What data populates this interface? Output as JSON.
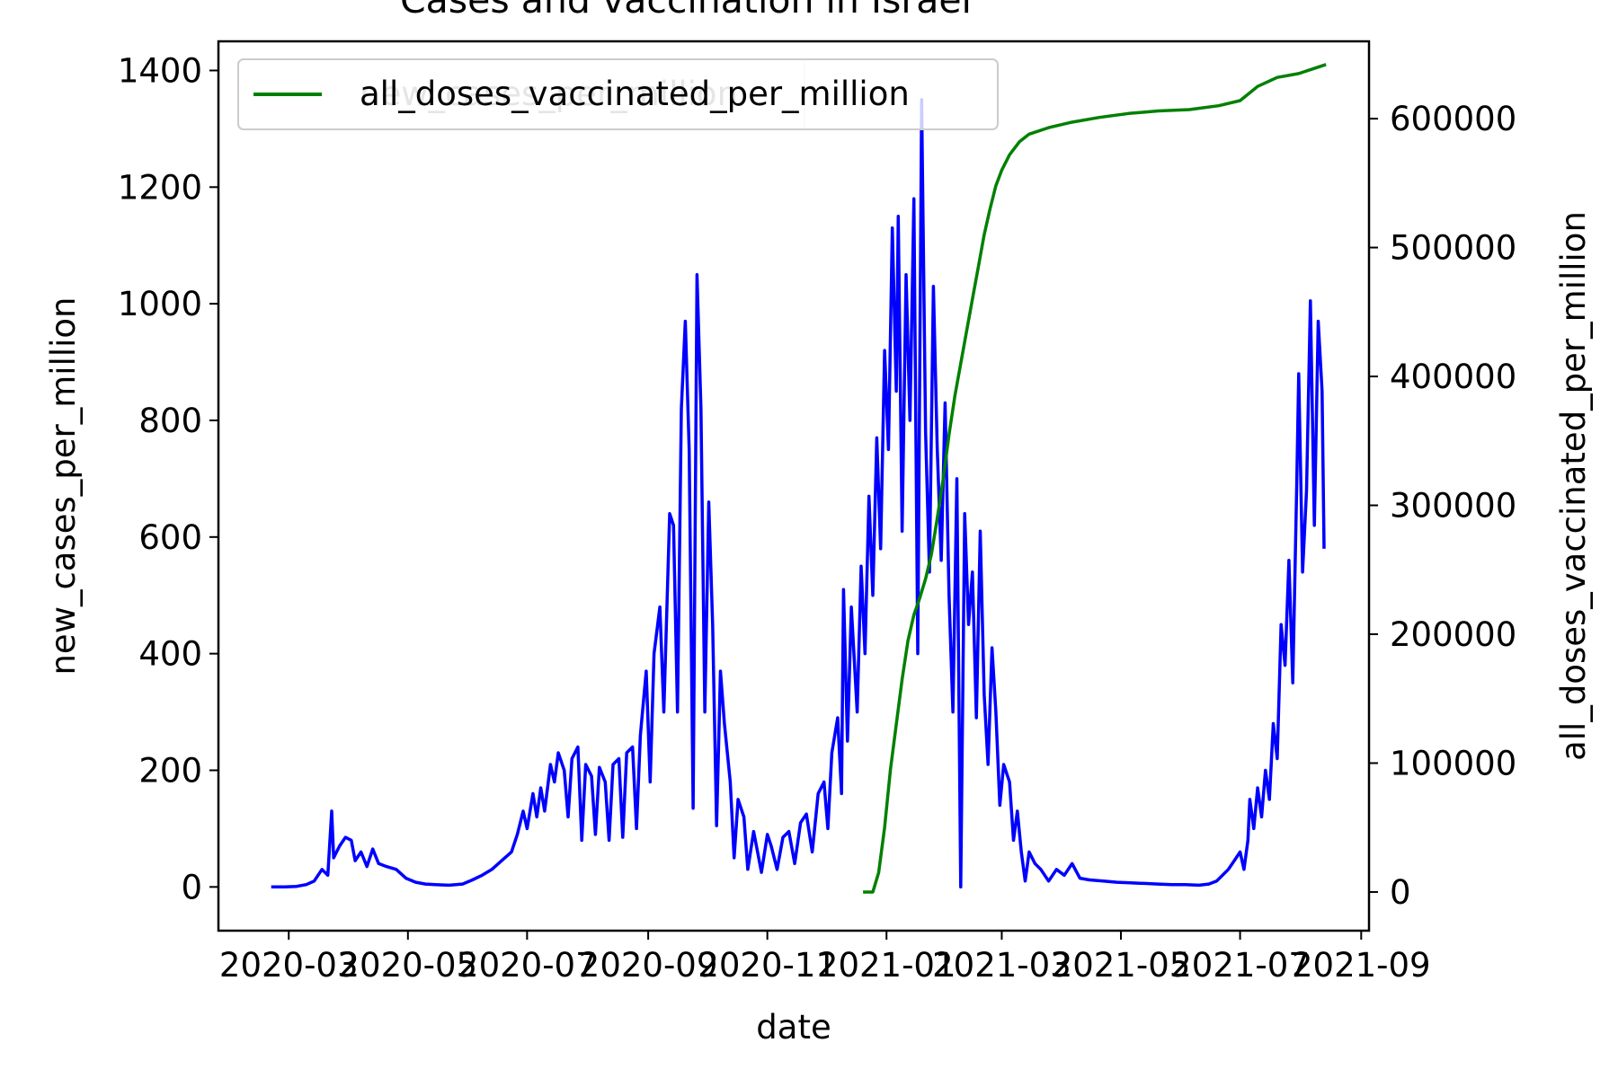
{
  "chart_data": {
    "type": "line",
    "title": "Cases and vaccination in Israel",
    "xlabel": "date",
    "ylabel_left": "new_cases_per_million",
    "ylabel_right": "all_doses_vaccinated_per_million",
    "xlim": [
      "2020-01-25",
      "2021-09-05"
    ],
    "ylim_left": [
      -75,
      1450
    ],
    "ylim_right": [
      -30000,
      660000
    ],
    "x_ticks": [
      "2020-03",
      "2020-05",
      "2020-07",
      "2020-09",
      "2020-11",
      "2021-01",
      "2021-03",
      "2021-05",
      "2021-07",
      "2021-09"
    ],
    "y_left_ticks": [
      0,
      200,
      400,
      600,
      800,
      1000,
      1200,
      1400
    ],
    "y_right_ticks": [
      0,
      100000,
      200000,
      300000,
      400000,
      500000,
      600000
    ],
    "y_right_tick_labels": [
      "0",
      "100000",
      "200000",
      "300000",
      "400000",
      "500000",
      "600000"
    ],
    "legend": {
      "placement": "upper-left",
      "entries": [
        "new_cases_per_million",
        "all_doses_vaccinated_per_million"
      ]
    },
    "series": [
      {
        "name": "new_cases_per_million",
        "axis": "left",
        "color": "#0000ff",
        "points": [
          [
            "2020-02-21",
            0
          ],
          [
            "2020-02-28",
            0
          ],
          [
            "2020-03-05",
            1
          ],
          [
            "2020-03-10",
            4
          ],
          [
            "2020-03-14",
            10
          ],
          [
            "2020-03-18",
            30
          ],
          [
            "2020-03-21",
            20
          ],
          [
            "2020-03-23",
            130
          ],
          [
            "2020-03-24",
            50
          ],
          [
            "2020-03-27",
            70
          ],
          [
            "2020-03-30",
            85
          ],
          [
            "2020-04-02",
            80
          ],
          [
            "2020-04-04",
            45
          ],
          [
            "2020-04-07",
            60
          ],
          [
            "2020-04-10",
            35
          ],
          [
            "2020-04-13",
            65
          ],
          [
            "2020-04-16",
            40
          ],
          [
            "2020-04-20",
            35
          ],
          [
            "2020-04-25",
            30
          ],
          [
            "2020-04-30",
            15
          ],
          [
            "2020-05-05",
            8
          ],
          [
            "2020-05-10",
            5
          ],
          [
            "2020-05-15",
            4
          ],
          [
            "2020-05-22",
            3
          ],
          [
            "2020-05-29",
            5
          ],
          [
            "2020-06-03",
            12
          ],
          [
            "2020-06-08",
            20
          ],
          [
            "2020-06-13",
            30
          ],
          [
            "2020-06-18",
            45
          ],
          [
            "2020-06-23",
            60
          ],
          [
            "2020-06-26",
            90
          ],
          [
            "2020-06-29",
            130
          ],
          [
            "2020-07-01",
            100
          ],
          [
            "2020-07-04",
            160
          ],
          [
            "2020-07-06",
            120
          ],
          [
            "2020-07-08",
            170
          ],
          [
            "2020-07-10",
            130
          ],
          [
            "2020-07-13",
            210
          ],
          [
            "2020-07-15",
            180
          ],
          [
            "2020-07-17",
            230
          ],
          [
            "2020-07-20",
            200
          ],
          [
            "2020-07-22",
            120
          ],
          [
            "2020-07-24",
            220
          ],
          [
            "2020-07-27",
            240
          ],
          [
            "2020-07-29",
            80
          ],
          [
            "2020-07-31",
            210
          ],
          [
            "2020-08-03",
            190
          ],
          [
            "2020-08-05",
            90
          ],
          [
            "2020-08-07",
            205
          ],
          [
            "2020-08-10",
            180
          ],
          [
            "2020-08-12",
            80
          ],
          [
            "2020-08-14",
            210
          ],
          [
            "2020-08-17",
            220
          ],
          [
            "2020-08-19",
            85
          ],
          [
            "2020-08-21",
            230
          ],
          [
            "2020-08-24",
            240
          ],
          [
            "2020-08-26",
            100
          ],
          [
            "2020-08-28",
            260
          ],
          [
            "2020-08-31",
            370
          ],
          [
            "2020-09-02",
            180
          ],
          [
            "2020-09-04",
            400
          ],
          [
            "2020-09-07",
            480
          ],
          [
            "2020-09-09",
            300
          ],
          [
            "2020-09-12",
            640
          ],
          [
            "2020-09-14",
            620
          ],
          [
            "2020-09-16",
            300
          ],
          [
            "2020-09-18",
            820
          ],
          [
            "2020-09-20",
            970
          ],
          [
            "2020-09-22",
            750
          ],
          [
            "2020-09-24",
            135
          ],
          [
            "2020-09-26",
            1050
          ],
          [
            "2020-09-28",
            820
          ],
          [
            "2020-09-30",
            300
          ],
          [
            "2020-10-02",
            660
          ],
          [
            "2020-10-04",
            450
          ],
          [
            "2020-10-06",
            105
          ],
          [
            "2020-10-08",
            370
          ],
          [
            "2020-10-10",
            280
          ],
          [
            "2020-10-13",
            180
          ],
          [
            "2020-10-15",
            50
          ],
          [
            "2020-10-17",
            150
          ],
          [
            "2020-10-20",
            120
          ],
          [
            "2020-10-22",
            30
          ],
          [
            "2020-10-25",
            95
          ],
          [
            "2020-10-27",
            60
          ],
          [
            "2020-10-29",
            25
          ],
          [
            "2020-11-01",
            90
          ],
          [
            "2020-11-03",
            70
          ],
          [
            "2020-11-06",
            30
          ],
          [
            "2020-11-09",
            85
          ],
          [
            "2020-11-12",
            95
          ],
          [
            "2020-11-15",
            40
          ],
          [
            "2020-11-18",
            110
          ],
          [
            "2020-11-21",
            125
          ],
          [
            "2020-11-24",
            60
          ],
          [
            "2020-11-27",
            160
          ],
          [
            "2020-11-30",
            180
          ],
          [
            "2020-12-02",
            100
          ],
          [
            "2020-12-04",
            230
          ],
          [
            "2020-12-07",
            290
          ],
          [
            "2020-12-09",
            160
          ],
          [
            "2020-12-10",
            510
          ],
          [
            "2020-12-12",
            250
          ],
          [
            "2020-12-14",
            480
          ],
          [
            "2020-12-17",
            300
          ],
          [
            "2020-12-19",
            550
          ],
          [
            "2020-12-21",
            400
          ],
          [
            "2020-12-23",
            670
          ],
          [
            "2020-12-25",
            500
          ],
          [
            "2020-12-27",
            770
          ],
          [
            "2020-12-29",
            580
          ],
          [
            "2020-12-31",
            920
          ],
          [
            "2021-01-02",
            750
          ],
          [
            "2021-01-04",
            1130
          ],
          [
            "2021-01-06",
            850
          ],
          [
            "2021-01-07",
            1150
          ],
          [
            "2021-01-09",
            610
          ],
          [
            "2021-01-11",
            1050
          ],
          [
            "2021-01-13",
            800
          ],
          [
            "2021-01-15",
            1180
          ],
          [
            "2021-01-17",
            400
          ],
          [
            "2021-01-19",
            1350
          ],
          [
            "2021-01-21",
            780
          ],
          [
            "2021-01-23",
            540
          ],
          [
            "2021-01-25",
            1030
          ],
          [
            "2021-01-27",
            750
          ],
          [
            "2021-01-29",
            560
          ],
          [
            "2021-01-31",
            830
          ],
          [
            "2021-02-02",
            500
          ],
          [
            "2021-02-04",
            300
          ],
          [
            "2021-02-06",
            700
          ],
          [
            "2021-02-08",
            0
          ],
          [
            "2021-02-10",
            640
          ],
          [
            "2021-02-12",
            450
          ],
          [
            "2021-02-14",
            540
          ],
          [
            "2021-02-16",
            290
          ],
          [
            "2021-02-18",
            610
          ],
          [
            "2021-02-20",
            330
          ],
          [
            "2021-02-22",
            210
          ],
          [
            "2021-02-24",
            410
          ],
          [
            "2021-02-26",
            300
          ],
          [
            "2021-02-28",
            140
          ],
          [
            "2021-03-02",
            210
          ],
          [
            "2021-03-05",
            180
          ],
          [
            "2021-03-07",
            80
          ],
          [
            "2021-03-09",
            130
          ],
          [
            "2021-03-11",
            60
          ],
          [
            "2021-03-13",
            10
          ],
          [
            "2021-03-15",
            60
          ],
          [
            "2021-03-18",
            40
          ],
          [
            "2021-03-21",
            30
          ],
          [
            "2021-03-25",
            10
          ],
          [
            "2021-03-29",
            30
          ],
          [
            "2021-04-02",
            20
          ],
          [
            "2021-04-06",
            40
          ],
          [
            "2021-04-10",
            15
          ],
          [
            "2021-04-15",
            12
          ],
          [
            "2021-04-22",
            10
          ],
          [
            "2021-04-29",
            8
          ],
          [
            "2021-05-06",
            7
          ],
          [
            "2021-05-13",
            6
          ],
          [
            "2021-05-20",
            5
          ],
          [
            "2021-05-27",
            4
          ],
          [
            "2021-06-03",
            4
          ],
          [
            "2021-06-10",
            3
          ],
          [
            "2021-06-15",
            5
          ],
          [
            "2021-06-19",
            10
          ],
          [
            "2021-06-22",
            20
          ],
          [
            "2021-06-25",
            30
          ],
          [
            "2021-06-28",
            45
          ],
          [
            "2021-07-01",
            60
          ],
          [
            "2021-07-03",
            30
          ],
          [
            "2021-07-05",
            80
          ],
          [
            "2021-07-06",
            150
          ],
          [
            "2021-07-08",
            100
          ],
          [
            "2021-07-10",
            170
          ],
          [
            "2021-07-12",
            120
          ],
          [
            "2021-07-14",
            200
          ],
          [
            "2021-07-16",
            150
          ],
          [
            "2021-07-18",
            280
          ],
          [
            "2021-07-20",
            220
          ],
          [
            "2021-07-22",
            450
          ],
          [
            "2021-07-24",
            380
          ],
          [
            "2021-07-26",
            560
          ],
          [
            "2021-07-28",
            350
          ],
          [
            "2021-07-30",
            690
          ],
          [
            "2021-07-31",
            880
          ],
          [
            "2021-08-02",
            540
          ],
          [
            "2021-08-04",
            680
          ],
          [
            "2021-08-06",
            1005
          ],
          [
            "2021-08-08",
            620
          ],
          [
            "2021-08-10",
            970
          ],
          [
            "2021-08-12",
            850
          ],
          [
            "2021-08-13",
            580
          ]
        ]
      },
      {
        "name": "all_doses_vaccinated_per_million",
        "axis": "right",
        "color": "#008000",
        "points": [
          [
            "2020-12-20",
            0
          ],
          [
            "2020-12-25",
            0
          ],
          [
            "2020-12-28",
            15000
          ],
          [
            "2020-12-31",
            50000
          ],
          [
            "2021-01-03",
            95000
          ],
          [
            "2021-01-06",
            130000
          ],
          [
            "2021-01-09",
            165000
          ],
          [
            "2021-01-12",
            195000
          ],
          [
            "2021-01-15",
            215000
          ],
          [
            "2021-01-18",
            228000
          ],
          [
            "2021-01-21",
            243000
          ],
          [
            "2021-01-24",
            262000
          ],
          [
            "2021-01-27",
            290000
          ],
          [
            "2021-01-30",
            320000
          ],
          [
            "2021-02-02",
            355000
          ],
          [
            "2021-02-05",
            385000
          ],
          [
            "2021-02-08",
            410000
          ],
          [
            "2021-02-11",
            435000
          ],
          [
            "2021-02-14",
            460000
          ],
          [
            "2021-02-17",
            485000
          ],
          [
            "2021-02-20",
            510000
          ],
          [
            "2021-02-23",
            530000
          ],
          [
            "2021-02-26",
            548000
          ],
          [
            "2021-03-01",
            560000
          ],
          [
            "2021-03-05",
            572000
          ],
          [
            "2021-03-10",
            582000
          ],
          [
            "2021-03-15",
            588000
          ],
          [
            "2021-03-25",
            593000
          ],
          [
            "2021-04-05",
            597000
          ],
          [
            "2021-04-20",
            601000
          ],
          [
            "2021-05-05",
            604000
          ],
          [
            "2021-05-20",
            606000
          ],
          [
            "2021-06-05",
            607000
          ],
          [
            "2021-06-20",
            610000
          ],
          [
            "2021-07-01",
            614000
          ],
          [
            "2021-07-10",
            625000
          ],
          [
            "2021-07-20",
            632000
          ],
          [
            "2021-07-31",
            635000
          ],
          [
            "2021-08-10",
            640000
          ],
          [
            "2021-08-14",
            642000
          ]
        ]
      }
    ]
  }
}
